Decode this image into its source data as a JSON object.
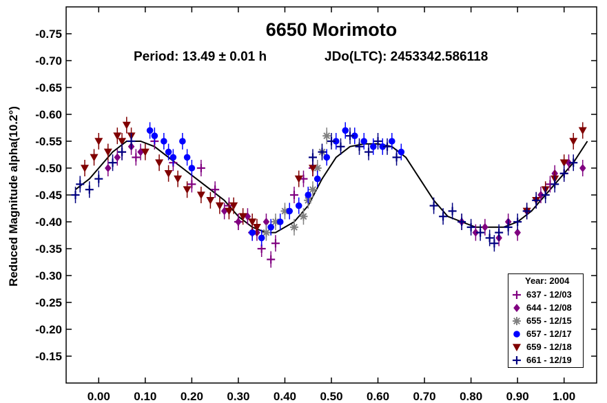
{
  "chart_data": {
    "type": "scatter",
    "title": "6650 Morimoto",
    "period_label": "Period: 13.49 ± 0.01 h",
    "epoch_label": "JDo(LTC): 2453342.586118",
    "ylabel": "Reduced Magnitude alpha(10.2°)",
    "xlabel": "",
    "xlim": [
      -0.07,
      1.07
    ],
    "ylim": [
      -0.8,
      -0.1
    ],
    "y_inverted": true,
    "xticks": [
      "0.00",
      "0.10",
      "0.20",
      "0.30",
      "0.40",
      "0.50",
      "0.60",
      "0.70",
      "0.80",
      "0.90",
      "1.00"
    ],
    "yticks": [
      "-0.75",
      "-0.70",
      "-0.65",
      "-0.60",
      "-0.55",
      "-0.50",
      "-0.45",
      "-0.40",
      "-0.35",
      "-0.30",
      "-0.25",
      "-0.20",
      "-0.15"
    ],
    "legend": {
      "title": "Year: 2004",
      "position": "bottom-right",
      "entries": [
        {
          "label": "637 - 12/03",
          "color": "#800080",
          "marker": "plus"
        },
        {
          "label": "644 - 12/08",
          "color": "#800080",
          "marker": "diamond"
        },
        {
          "label": "655 - 12/15",
          "color": "#808080",
          "marker": "asterisk"
        },
        {
          "label": "657 - 12/17",
          "color": "#0000ff",
          "marker": "circle"
        },
        {
          "label": "659 - 12/18",
          "color": "#800000",
          "marker": "triangle-down"
        },
        {
          "label": "661 - 12/19",
          "color": "#000080",
          "marker": "plus"
        }
      ]
    },
    "fit_curve": {
      "x": [
        -0.05,
        -0.02,
        0.0,
        0.03,
        0.06,
        0.09,
        0.12,
        0.15,
        0.18,
        0.21,
        0.24,
        0.27,
        0.3,
        0.33,
        0.36,
        0.38,
        0.4,
        0.42,
        0.45,
        0.48,
        0.51,
        0.54,
        0.57,
        0.6,
        0.63,
        0.66,
        0.69,
        0.72,
        0.75,
        0.78,
        0.81,
        0.84,
        0.87,
        0.9,
        0.93,
        0.96,
        0.99,
        1.02,
        1.05
      ],
      "y": [
        -0.46,
        -0.48,
        -0.5,
        -0.53,
        -0.55,
        -0.55,
        -0.54,
        -0.52,
        -0.5,
        -0.48,
        -0.46,
        -0.44,
        -0.41,
        -0.39,
        -0.38,
        -0.38,
        -0.39,
        -0.4,
        -0.43,
        -0.48,
        -0.52,
        -0.54,
        -0.545,
        -0.545,
        -0.54,
        -0.52,
        -0.48,
        -0.44,
        -0.41,
        -0.4,
        -0.39,
        -0.39,
        -0.39,
        -0.4,
        -0.42,
        -0.45,
        -0.48,
        -0.51,
        -0.55
      ]
    },
    "series": [
      {
        "name": "637 - 12/03",
        "x": [
          0.05,
          0.08,
          0.12,
          0.16,
          0.2,
          0.22,
          0.25,
          0.28,
          0.3,
          0.33,
          0.35,
          0.37,
          0.38,
          0.42,
          0.44,
          0.46,
          0.97,
          1.0
        ],
        "y": [
          -0.53,
          -0.52,
          -0.55,
          -0.51,
          -0.47,
          -0.5,
          -0.46,
          -0.43,
          -0.4,
          -0.38,
          -0.35,
          -0.33,
          -0.36,
          -0.45,
          -0.48,
          -0.5,
          -0.47,
          -0.49
        ]
      },
      {
        "name": "644 - 12/08",
        "x": [
          0.02,
          0.04,
          0.07,
          0.09,
          0.27,
          0.3,
          0.32,
          0.34,
          0.36,
          0.78,
          0.81,
          0.83,
          0.86,
          0.88,
          0.9,
          0.92,
          0.95,
          0.98,
          1.01,
          1.04
        ],
        "y": [
          -0.5,
          -0.52,
          -0.54,
          -0.53,
          -0.42,
          -0.4,
          -0.41,
          -0.38,
          -0.4,
          -0.4,
          -0.38,
          -0.39,
          -0.37,
          -0.4,
          -0.38,
          -0.42,
          -0.45,
          -0.49,
          -0.51,
          -0.5
        ]
      },
      {
        "name": "655 - 12/15",
        "x": [
          0.36,
          0.38,
          0.4,
          0.42,
          0.44,
          0.45,
          0.46,
          0.47,
          0.48,
          0.49
        ],
        "y": [
          -0.38,
          -0.4,
          -0.42,
          -0.39,
          -0.41,
          -0.44,
          -0.46,
          -0.5,
          -0.53,
          -0.56
        ]
      },
      {
        "name": "657 - 12/17",
        "x": [
          0.11,
          0.12,
          0.14,
          0.15,
          0.16,
          0.18,
          0.19,
          0.2,
          0.33,
          0.35,
          0.37,
          0.39,
          0.41,
          0.43,
          0.45,
          0.47,
          0.49,
          0.51,
          0.53,
          0.55,
          0.57,
          0.59,
          0.61,
          0.63,
          0.65
        ],
        "y": [
          -0.57,
          -0.56,
          -0.55,
          -0.53,
          -0.52,
          -0.55,
          -0.52,
          -0.5,
          -0.38,
          -0.37,
          -0.39,
          -0.4,
          -0.42,
          -0.43,
          -0.45,
          -0.48,
          -0.52,
          -0.55,
          -0.57,
          -0.56,
          -0.55,
          -0.54,
          -0.54,
          -0.55,
          -0.53
        ]
      },
      {
        "name": "659 - 12/18",
        "x": [
          -0.03,
          -0.01,
          0.0,
          0.02,
          0.04,
          0.05,
          0.06,
          0.07,
          0.1,
          0.13,
          0.15,
          0.17,
          0.19,
          0.22,
          0.24,
          0.26,
          0.28,
          0.29,
          0.31,
          0.33,
          0.34,
          0.43,
          0.46,
          0.92,
          0.94,
          0.96,
          0.98,
          1.0,
          1.02,
          1.04
        ],
        "y": [
          -0.5,
          -0.52,
          -0.55,
          -0.53,
          -0.56,
          -0.55,
          -0.58,
          -0.56,
          -0.53,
          -0.51,
          -0.49,
          -0.48,
          -0.46,
          -0.45,
          -0.44,
          -0.43,
          -0.42,
          -0.43,
          -0.41,
          -0.4,
          -0.39,
          -0.48,
          -0.5,
          -0.42,
          -0.44,
          -0.46,
          -0.48,
          -0.51,
          -0.55,
          -0.57
        ]
      },
      {
        "name": "661 - 12/19",
        "x": [
          -0.05,
          -0.04,
          -0.02,
          0.0,
          0.03,
          0.05,
          0.07,
          0.46,
          0.48,
          0.5,
          0.52,
          0.54,
          0.56,
          0.58,
          0.6,
          0.62,
          0.64,
          0.72,
          0.74,
          0.76,
          0.78,
          0.8,
          0.82,
          0.84,
          0.85,
          0.86,
          0.88,
          0.9,
          0.92,
          0.94,
          0.96,
          0.98,
          1.0,
          1.02
        ],
        "y": [
          -0.45,
          -0.47,
          -0.46,
          -0.48,
          -0.51,
          -0.53,
          -0.55,
          -0.52,
          -0.53,
          -0.55,
          -0.54,
          -0.56,
          -0.54,
          -0.53,
          -0.55,
          -0.54,
          -0.52,
          -0.43,
          -0.41,
          -0.42,
          -0.4,
          -0.39,
          -0.38,
          -0.37,
          -0.36,
          -0.38,
          -0.39,
          -0.4,
          -0.42,
          -0.44,
          -0.45,
          -0.47,
          -0.49,
          -0.51
        ]
      }
    ]
  }
}
